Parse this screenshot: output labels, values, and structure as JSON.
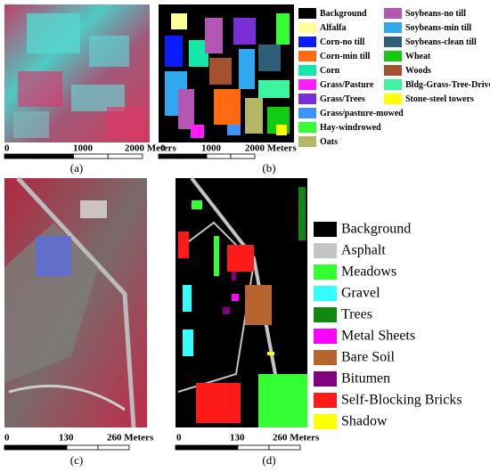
{
  "panels": [
    {
      "label": "(a)",
      "scale": [
        "0",
        "1000",
        "2000 Meters"
      ]
    },
    {
      "label": "(b)",
      "scale": [
        "0",
        "1000",
        "2000 Meters"
      ],
      "legend": [
        {
          "name": "Background",
          "color": "#000000"
        },
        {
          "name": "Alfalfa",
          "color": "#ffff99"
        },
        {
          "name": "Corn-no till",
          "color": "#0a1cff"
        },
        {
          "name": "Corn-min till",
          "color": "#ff6a10"
        },
        {
          "name": "Corn",
          "color": "#12e8a8"
        },
        {
          "name": "Grass/Pasture",
          "color": "#ff1aff"
        },
        {
          "name": "Grass/Trees",
          "color": "#7a2ed6"
        },
        {
          "name": "Grass/pasture-mowed",
          "color": "#3a94ff"
        },
        {
          "name": "Hay-windrowed",
          "color": "#33ff33"
        },
        {
          "name": "Oats",
          "color": "#b5b566"
        },
        {
          "name": "Soybeans-no till",
          "color": "#b456b4"
        },
        {
          "name": "Soybeans-min till",
          "color": "#2fa8f0"
        },
        {
          "name": "Soybeans-clean till",
          "color": "#2d5f78"
        },
        {
          "name": "Wheat",
          "color": "#11cc11"
        },
        {
          "name": "Woods",
          "color": "#a3522d"
        },
        {
          "name": "Bldg-Grass-Tree-Drives",
          "color": "#3cf5a0"
        },
        {
          "name": "Stone-steel towers",
          "color": "#ffff00"
        }
      ]
    },
    {
      "label": "(c)",
      "scale": [
        "0",
        "130",
        "260 Meters"
      ]
    },
    {
      "label": "(d)",
      "scale": [
        "0",
        "130",
        "260 Meters"
      ],
      "legend": [
        {
          "name": "Background",
          "color": "#000000"
        },
        {
          "name": "Asphalt",
          "color": "#c4c4c4"
        },
        {
          "name": "Meadows",
          "color": "#33ff33"
        },
        {
          "name": "Gravel",
          "color": "#33ffff"
        },
        {
          "name": "Trees",
          "color": "#118811"
        },
        {
          "name": "Metal Sheets",
          "color": "#ff00ff"
        },
        {
          "name": "Bare Soil",
          "color": "#b5652d"
        },
        {
          "name": "Bitumen",
          "color": "#800080"
        },
        {
          "name": "Self-Blocking Bricks",
          "color": "#ff1a1a"
        },
        {
          "name": "Shadow",
          "color": "#ffff00"
        }
      ]
    }
  ]
}
